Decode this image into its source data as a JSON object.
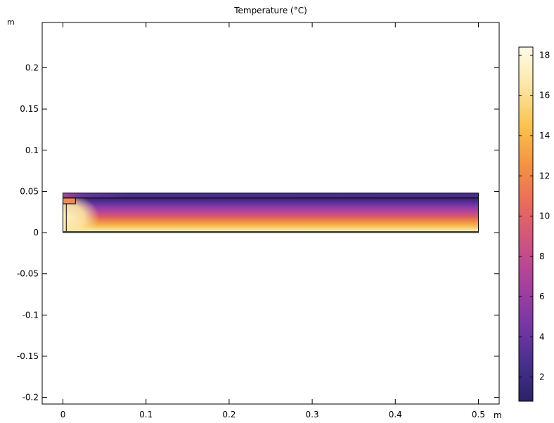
{
  "chart_data": {
    "type": "heatmap",
    "title": "Temperature (°C)",
    "x_unit": "m",
    "y_unit": "m",
    "xlim": [
      -0.025,
      0.525
    ],
    "ylim": [
      -0.208,
      0.255
    ],
    "x_ticks": [
      "0",
      "0.1",
      "0.2",
      "0.3",
      "0.4",
      "0.5"
    ],
    "y_ticks": [
      "0.2",
      "0.15",
      "0.1",
      "0.05",
      "0",
      "-0.05",
      "-0.1",
      "-0.15",
      "-0.2"
    ],
    "geometry": {
      "outer": {
        "x": [
          0,
          0.5
        ],
        "y": [
          0,
          0.048
        ]
      },
      "top_layer_boundary_y": 0.042,
      "inner_step": {
        "x": [
          0,
          0.015
        ],
        "y": [
          0.035,
          0.042
        ]
      },
      "inner_wall": {
        "x": [
          0,
          0.004
        ],
        "y": [
          0.001,
          0.035
        ]
      },
      "bottom_layer_thickness": 0.002
    },
    "colorbar": {
      "min": 0.8,
      "max": 18.4,
      "ticks": [
        "18",
        "16",
        "14",
        "12",
        "10",
        "8",
        "6",
        "4",
        "2"
      ],
      "colormap": [
        "#2b2269",
        "#4a2f8f",
        "#7a37a6",
        "#a9409e",
        "#cf5281",
        "#ea6a5b",
        "#f59241",
        "#fac34c",
        "#fbe6a4",
        "#fffbea"
      ]
    },
    "field_description_stops": {
      "top_temperature": 1.5,
      "bottom_temperature": 17.5,
      "hot_corner_temperature": 18
    }
  }
}
